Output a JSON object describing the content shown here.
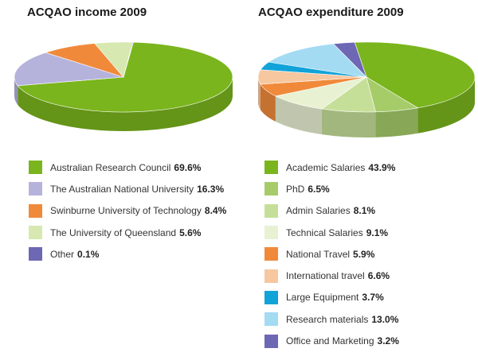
{
  "chart_data": [
    {
      "type": "pie",
      "title": "ACQAO income 2009",
      "categories": [
        "Australian Research Council",
        "The Australian National University",
        "Swinburne University of Technology",
        "The University of Queensland",
        "Other"
      ],
      "values": [
        69.6,
        16.3,
        8.4,
        5.6,
        0.1
      ],
      "value_labels": [
        "69.6%",
        "16.3%",
        "8.4%",
        "5.6%",
        "0.1%"
      ],
      "colors": [
        "#7ab51d",
        "#b5b3dc",
        "#f08a3a",
        "#d7e8b0",
        "#6e67b3"
      ],
      "style": "3d-tilted",
      "legend": "below"
    },
    {
      "type": "pie",
      "title": "ACQAO expenditure 2009",
      "categories": [
        "Academic Salaries",
        "PhD",
        "Admin Salaries",
        "Technical Salaries",
        "National Travel",
        "International travel",
        "Large Equipment",
        "Research materials",
        "Office and Marketing"
      ],
      "values": [
        43.9,
        6.5,
        8.1,
        9.1,
        5.9,
        6.6,
        3.7,
        13.0,
        3.2
      ],
      "value_labels": [
        "43.9%",
        "6.5%",
        "8.1%",
        "9.1%",
        "5.9%",
        "6.6%",
        "3.7%",
        "13.0%",
        "3.2%"
      ],
      "colors": [
        "#7ab51d",
        "#a6cc6a",
        "#c6df98",
        "#e9f1d3",
        "#f08a3a",
        "#f7c7a0",
        "#12a3d9",
        "#a3dbf3",
        "#6e67b3"
      ],
      "style": "3d-tilted",
      "legend": "below"
    }
  ]
}
